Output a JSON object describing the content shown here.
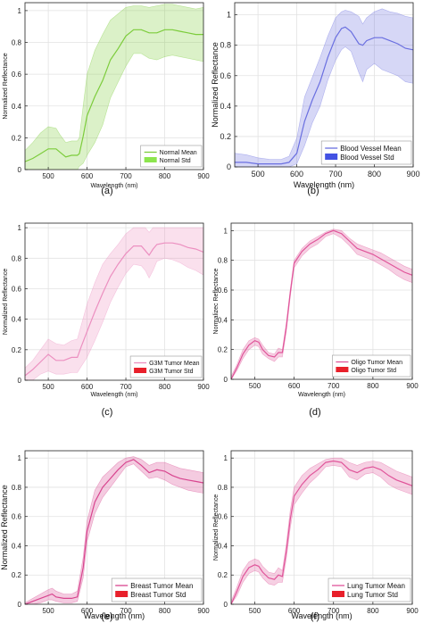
{
  "chart_data": [
    {
      "type": "area",
      "panel_label": "(a)",
      "xlabel": "Wavelength (nm)",
      "ylabel": "Normalized Reflectance",
      "xlim": [
        440,
        900
      ],
      "ylim": [
        0,
        1.05
      ],
      "x_ticks": [
        500,
        600,
        700,
        800,
        900
      ],
      "y_ticks": [
        0,
        0.2,
        0.4,
        0.6,
        0.8,
        1
      ],
      "series": [
        {
          "name": "Normal Mean",
          "role": "mean",
          "color": "#7ccc3b",
          "x": [
            440,
            460,
            480,
            500,
            520,
            530,
            545,
            560,
            575,
            580,
            590,
            600,
            620,
            640,
            660,
            680,
            700,
            720,
            740,
            760,
            780,
            800,
            820,
            840,
            860,
            880,
            900
          ],
          "y": [
            0.05,
            0.07,
            0.1,
            0.13,
            0.13,
            0.11,
            0.08,
            0.09,
            0.09,
            0.1,
            0.21,
            0.34,
            0.46,
            0.56,
            0.69,
            0.76,
            0.84,
            0.88,
            0.88,
            0.86,
            0.86,
            0.88,
            0.88,
            0.87,
            0.86,
            0.85,
            0.85
          ]
        },
        {
          "name": "Normal Std",
          "role": "std",
          "color": "#7ccc3b",
          "x": [
            440,
            460,
            480,
            500,
            520,
            530,
            545,
            560,
            575,
            580,
            590,
            600,
            620,
            640,
            660,
            680,
            700,
            720,
            740,
            760,
            780,
            800,
            820,
            840,
            860,
            880,
            900
          ],
          "upper": [
            0.12,
            0.17,
            0.23,
            0.27,
            0.26,
            0.22,
            0.17,
            0.18,
            0.18,
            0.2,
            0.4,
            0.6,
            0.75,
            0.85,
            0.94,
            0.98,
            1.02,
            1.03,
            1.03,
            1.02,
            1.03,
            1.04,
            1.04,
            1.03,
            1.02,
            1.01,
            1.02
          ],
          "lower": [
            0.0,
            0.0,
            0.0,
            0.0,
            0.0,
            0.0,
            0.0,
            0.0,
            0.0,
            0.02,
            0.04,
            0.09,
            0.17,
            0.28,
            0.45,
            0.55,
            0.65,
            0.73,
            0.73,
            0.7,
            0.69,
            0.71,
            0.72,
            0.71,
            0.7,
            0.69,
            0.68
          ]
        }
      ]
    },
    {
      "type": "area",
      "panel_label": "(b)",
      "xlabel": "Wavelength (nm)",
      "ylabel": "Normalized Reflectance",
      "xlim": [
        440,
        900
      ],
      "ylim": [
        0,
        1.08
      ],
      "x_ticks": [
        500,
        600,
        700,
        800,
        900
      ],
      "y_ticks": [
        0,
        0.2,
        0.4,
        0.6,
        0.8,
        1
      ],
      "series": [
        {
          "name": "Blood Vessel Mean",
          "role": "mean",
          "color": "#6a6fe0",
          "x": [
            440,
            470,
            500,
            530,
            560,
            580,
            600,
            620,
            640,
            660,
            680,
            700,
            715,
            725,
            740,
            760,
            770,
            780,
            800,
            820,
            840,
            860,
            880,
            900
          ],
          "y": [
            0.03,
            0.03,
            0.02,
            0.02,
            0.02,
            0.03,
            0.09,
            0.3,
            0.44,
            0.56,
            0.72,
            0.85,
            0.91,
            0.92,
            0.89,
            0.81,
            0.8,
            0.83,
            0.85,
            0.85,
            0.83,
            0.81,
            0.78,
            0.77
          ]
        },
        {
          "name": "Blood Vessel Std",
          "role": "std",
          "color": "#6a6fe0",
          "x": [
            440,
            470,
            500,
            530,
            560,
            580,
            600,
            620,
            640,
            660,
            680,
            700,
            715,
            725,
            740,
            760,
            770,
            780,
            800,
            820,
            840,
            860,
            880,
            900
          ],
          "upper": [
            0.09,
            0.08,
            0.06,
            0.05,
            0.05,
            0.07,
            0.19,
            0.46,
            0.59,
            0.72,
            0.86,
            0.98,
            1.02,
            1.03,
            1.02,
            0.99,
            0.94,
            0.98,
            1.02,
            1.04,
            1.02,
            1.01,
            0.99,
            0.98
          ],
          "lower": [
            0.0,
            0.0,
            0.0,
            0.0,
            0.0,
            0.0,
            0.02,
            0.14,
            0.29,
            0.4,
            0.57,
            0.7,
            0.77,
            0.79,
            0.76,
            0.62,
            0.56,
            0.64,
            0.68,
            0.64,
            0.62,
            0.6,
            0.56,
            0.55
          ]
        }
      ]
    },
    {
      "type": "area",
      "panel_label": "(c)",
      "xlabel": "Wavelength (nm)",
      "ylabel": "Normalized Reflectance",
      "xlim": [
        440,
        900
      ],
      "ylim": [
        0,
        1.03
      ],
      "x_ticks": [
        500,
        600,
        700,
        800,
        900
      ],
      "y_ticks": [
        0,
        0.2,
        0.4,
        0.6,
        0.8,
        1
      ],
      "series": [
        {
          "name": "G3M Tumor Mean",
          "role": "mean",
          "color": "#ec8fc0",
          "x": [
            440,
            460,
            480,
            500,
            520,
            540,
            560,
            575,
            585,
            600,
            620,
            640,
            660,
            680,
            700,
            720,
            740,
            750,
            760,
            770,
            780,
            800,
            820,
            840,
            860,
            880,
            900
          ],
          "y": [
            0.03,
            0.07,
            0.12,
            0.17,
            0.13,
            0.13,
            0.15,
            0.15,
            0.22,
            0.32,
            0.45,
            0.57,
            0.68,
            0.76,
            0.83,
            0.88,
            0.88,
            0.85,
            0.82,
            0.86,
            0.89,
            0.9,
            0.9,
            0.89,
            0.87,
            0.86,
            0.84
          ]
        },
        {
          "name": "G3M Tumor Std",
          "role": "std",
          "color": "#ec8fc0",
          "x": [
            440,
            460,
            480,
            500,
            520,
            540,
            560,
            575,
            585,
            600,
            620,
            640,
            660,
            680,
            700,
            720,
            740,
            750,
            760,
            770,
            780,
            800,
            820,
            840,
            860,
            880,
            900
          ],
          "upper": [
            0.08,
            0.13,
            0.2,
            0.27,
            0.24,
            0.23,
            0.26,
            0.27,
            0.36,
            0.5,
            0.64,
            0.76,
            0.83,
            0.89,
            0.96,
            1.0,
            1.0,
            1.0,
            0.97,
            1.0,
            1.0,
            1.0,
            1.0,
            1.0,
            1.0,
            1.0,
            1.0
          ],
          "lower": [
            0.0,
            0.0,
            0.04,
            0.06,
            0.04,
            0.04,
            0.05,
            0.05,
            0.09,
            0.15,
            0.26,
            0.38,
            0.51,
            0.61,
            0.7,
            0.76,
            0.75,
            0.72,
            0.67,
            0.72,
            0.78,
            0.8,
            0.79,
            0.77,
            0.74,
            0.72,
            0.69
          ]
        }
      ]
    },
    {
      "type": "area",
      "panel_label": "(d)",
      "xlabel": "Wavelength (nm)",
      "ylabel": "Normalizec Reflectance",
      "xlim": [
        440,
        900
      ],
      "ylim": [
        0,
        1.05
      ],
      "x_ticks": [
        500,
        600,
        700,
        800,
        900
      ],
      "y_ticks": [
        0,
        0.2,
        0.4,
        0.6,
        0.8,
        1
      ],
      "series": [
        {
          "name": "Oligo Tumor Mean",
          "role": "mean",
          "color": "#e0559a",
          "x": [
            440,
            455,
            470,
            485,
            500,
            510,
            520,
            535,
            550,
            560,
            570,
            580,
            590,
            600,
            620,
            640,
            660,
            680,
            700,
            720,
            740,
            760,
            780,
            800,
            820,
            840,
            860,
            880,
            900
          ],
          "y": [
            0.0,
            0.08,
            0.17,
            0.23,
            0.26,
            0.25,
            0.2,
            0.16,
            0.15,
            0.18,
            0.18,
            0.35,
            0.58,
            0.78,
            0.86,
            0.91,
            0.94,
            0.98,
            1.0,
            0.98,
            0.93,
            0.88,
            0.86,
            0.84,
            0.81,
            0.78,
            0.75,
            0.72,
            0.7
          ]
        },
        {
          "name": "Oligo Tumor Std",
          "role": "std",
          "color": "#e0559a",
          "x": [
            440,
            455,
            470,
            485,
            500,
            510,
            520,
            535,
            550,
            560,
            570,
            580,
            590,
            600,
            620,
            640,
            660,
            680,
            700,
            720,
            740,
            760,
            780,
            800,
            820,
            840,
            860,
            880,
            900
          ],
          "upper": [
            0.02,
            0.1,
            0.2,
            0.26,
            0.28,
            0.27,
            0.23,
            0.18,
            0.17,
            0.21,
            0.2,
            0.38,
            0.6,
            0.8,
            0.88,
            0.93,
            0.96,
            0.99,
            1.01,
            1.0,
            0.95,
            0.91,
            0.89,
            0.87,
            0.85,
            0.82,
            0.79,
            0.76,
            0.74
          ],
          "lower": [
            0.0,
            0.06,
            0.14,
            0.2,
            0.23,
            0.22,
            0.17,
            0.14,
            0.12,
            0.15,
            0.15,
            0.32,
            0.55,
            0.75,
            0.83,
            0.88,
            0.91,
            0.96,
            0.98,
            0.95,
            0.9,
            0.84,
            0.82,
            0.8,
            0.77,
            0.74,
            0.7,
            0.67,
            0.65
          ]
        }
      ]
    },
    {
      "type": "area",
      "panel_label": "(e)",
      "xlabel": "Wavelength (nm)",
      "ylabel": "Normalized Reflectance",
      "xlim": [
        440,
        900
      ],
      "ylim": [
        0,
        1.05
      ],
      "x_ticks": [
        500,
        600,
        700,
        800,
        900
      ],
      "y_ticks": [
        0,
        0.2,
        0.4,
        0.6,
        0.8,
        1
      ],
      "series": [
        {
          "name": "Breast Tumor Mean",
          "role": "mean",
          "color": "#d8458f",
          "x": [
            440,
            460,
            480,
            500,
            510,
            520,
            540,
            560,
            575,
            590,
            600,
            620,
            640,
            660,
            680,
            700,
            720,
            740,
            760,
            780,
            800,
            820,
            840,
            860,
            880,
            900
          ],
          "y": [
            0.0,
            0.02,
            0.04,
            0.06,
            0.07,
            0.05,
            0.04,
            0.04,
            0.05,
            0.25,
            0.5,
            0.7,
            0.8,
            0.86,
            0.92,
            0.97,
            0.99,
            0.95,
            0.9,
            0.92,
            0.91,
            0.88,
            0.86,
            0.85,
            0.84,
            0.83
          ]
        },
        {
          "name": "Breast Tumor Std",
          "role": "std",
          "color": "#d8458f",
          "x": [
            440,
            460,
            480,
            500,
            510,
            520,
            540,
            560,
            575,
            590,
            600,
            620,
            640,
            660,
            680,
            700,
            720,
            740,
            760,
            780,
            800,
            820,
            840,
            860,
            880,
            900
          ],
          "upper": [
            0.01,
            0.04,
            0.07,
            0.1,
            0.11,
            0.09,
            0.07,
            0.07,
            0.09,
            0.32,
            0.57,
            0.78,
            0.87,
            0.92,
            0.97,
            1.0,
            1.01,
            0.99,
            0.95,
            0.97,
            0.97,
            0.95,
            0.93,
            0.92,
            0.91,
            0.9
          ],
          "lower": [
            0.0,
            0.0,
            0.01,
            0.03,
            0.03,
            0.02,
            0.01,
            0.01,
            0.02,
            0.18,
            0.43,
            0.62,
            0.73,
            0.8,
            0.87,
            0.94,
            0.96,
            0.91,
            0.86,
            0.87,
            0.85,
            0.82,
            0.8,
            0.78,
            0.77,
            0.76
          ]
        }
      ]
    },
    {
      "type": "area",
      "panel_label": "(f)",
      "xlabel": "Wavelength (nm)",
      "ylabel": "Normalized Reflectance",
      "xlim": [
        440,
        900
      ],
      "ylim": [
        0,
        1.05
      ],
      "x_ticks": [
        500,
        600,
        700,
        800,
        900
      ],
      "y_ticks": [
        0,
        0.2,
        0.4,
        0.6,
        0.8,
        1
      ],
      "series": [
        {
          "name": "Lung Tumor Mean",
          "role": "mean",
          "color": "#e0559a",
          "x": [
            440,
            455,
            470,
            485,
            500,
            510,
            520,
            535,
            550,
            560,
            570,
            580,
            590,
            600,
            620,
            640,
            660,
            680,
            700,
            720,
            740,
            760,
            780,
            800,
            820,
            840,
            860,
            880,
            900
          ],
          "y": [
            0.0,
            0.09,
            0.19,
            0.25,
            0.27,
            0.26,
            0.22,
            0.18,
            0.17,
            0.2,
            0.19,
            0.36,
            0.58,
            0.74,
            0.82,
            0.88,
            0.92,
            0.97,
            0.98,
            0.97,
            0.92,
            0.9,
            0.93,
            0.94,
            0.92,
            0.88,
            0.85,
            0.83,
            0.81
          ]
        },
        {
          "name": "Lung Tumor Std",
          "role": "std",
          "color": "#e0559a",
          "x": [
            440,
            455,
            470,
            485,
            500,
            510,
            520,
            535,
            550,
            560,
            570,
            580,
            590,
            600,
            620,
            640,
            660,
            680,
            700,
            720,
            740,
            760,
            780,
            800,
            820,
            840,
            860,
            880,
            900
          ],
          "upper": [
            0.02,
            0.12,
            0.23,
            0.29,
            0.31,
            0.3,
            0.26,
            0.22,
            0.21,
            0.25,
            0.23,
            0.41,
            0.64,
            0.8,
            0.88,
            0.93,
            0.96,
            0.99,
            1.0,
            1.0,
            0.97,
            0.95,
            0.97,
            0.98,
            0.97,
            0.94,
            0.91,
            0.89,
            0.87
          ],
          "lower": [
            0.0,
            0.06,
            0.15,
            0.21,
            0.23,
            0.22,
            0.18,
            0.14,
            0.13,
            0.15,
            0.15,
            0.31,
            0.52,
            0.68,
            0.76,
            0.83,
            0.88,
            0.94,
            0.95,
            0.94,
            0.87,
            0.85,
            0.89,
            0.9,
            0.87,
            0.82,
            0.79,
            0.77,
            0.75
          ]
        }
      ]
    }
  ]
}
